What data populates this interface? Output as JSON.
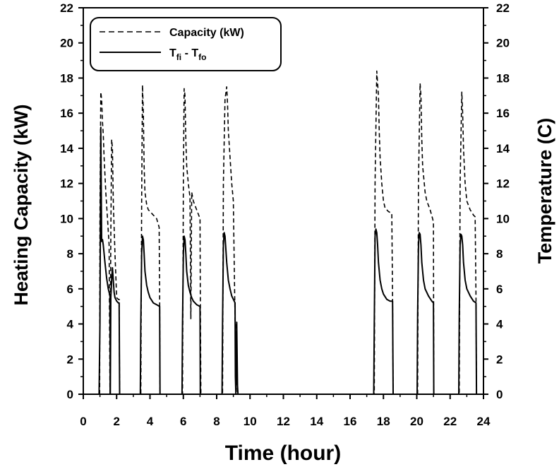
{
  "chart_data": {
    "type": "line",
    "xlabel": "Time (hour)",
    "ylabel_left": "Heating Capacity (kW)",
    "ylabel_right": "Temperature (C)",
    "xlim": [
      0,
      24
    ],
    "ylim": [
      0,
      22
    ],
    "xticks": [
      "0",
      "2",
      "4",
      "6",
      "8",
      "10",
      "12",
      "14",
      "16",
      "18",
      "20",
      "22",
      "24"
    ],
    "yticks": [
      "0",
      "2",
      "4",
      "6",
      "8",
      "10",
      "12",
      "14",
      "16",
      "18",
      "20",
      "22"
    ],
    "legend": {
      "position": "top-left",
      "items": [
        {
          "label": "Capacity (kW)",
          "style": "dashed"
        },
        {
          "label_main": "T",
          "sub1": "fi",
          "mid": " - T",
          "sub2": "fo",
          "style": "solid"
        }
      ]
    },
    "series": [
      {
        "name": "Capacity (kW)",
        "style": "dashed",
        "x": [
          0.98,
          1.0,
          1.05,
          1.1,
          1.15,
          1.2,
          1.25,
          1.35,
          1.45,
          1.55,
          1.6,
          1.65,
          1.7,
          1.75,
          1.8,
          1.85,
          1.9,
          2.0,
          2.1,
          2.15,
          2.18,
          3.45,
          3.5,
          3.55,
          3.6,
          3.65,
          3.7,
          3.8,
          3.9,
          4.0,
          4.2,
          4.4,
          4.55,
          4.58,
          4.6,
          5.95,
          6.0,
          6.05,
          6.1,
          6.15,
          6.2,
          6.3,
          6.4,
          6.45,
          6.5,
          6.6,
          6.8,
          7.0,
          7.02,
          7.05,
          8.35,
          8.4,
          8.5,
          8.6,
          8.65,
          8.7,
          8.8,
          8.9,
          9.0,
          9.1,
          9.15,
          9.18,
          17.45,
          17.5,
          17.6,
          17.7,
          17.75,
          17.8,
          17.9,
          18.0,
          18.1,
          18.3,
          18.5,
          18.55,
          18.58,
          20.05,
          20.1,
          20.2,
          20.25,
          20.3,
          20.35,
          20.5,
          20.6,
          20.8,
          20.95,
          21.0,
          21.02,
          22.55,
          22.6,
          22.7,
          22.75,
          22.8,
          22.9,
          23.0,
          23.2,
          23.4,
          23.5,
          23.55,
          23.58
        ],
        "y": [
          0,
          10.0,
          17.2,
          16.8,
          15.5,
          14.8,
          13.5,
          11.5,
          10.0,
          8.5,
          0,
          9.0,
          14.5,
          14.0,
          11.0,
          9.5,
          8.0,
          5.5,
          5.4,
          5.4,
          0,
          0,
          11.0,
          17.6,
          16.0,
          13.0,
          11.5,
          10.8,
          10.5,
          10.4,
          10.2,
          10.0,
          9.5,
          5.5,
          0,
          0,
          12.0,
          17.4,
          17.0,
          14.5,
          13.0,
          12.0,
          11.2,
          4.3,
          11.5,
          11.0,
          10.5,
          10.0,
          5.8,
          0,
          0,
          12.0,
          16.8,
          17.5,
          16.5,
          15.0,
          13.5,
          12.0,
          11.0,
          4.2,
          4.1,
          0,
          0,
          12.0,
          18.4,
          17.0,
          15.0,
          13.5,
          12.0,
          11.0,
          10.6,
          10.4,
          10.3,
          5.5,
          0,
          0,
          12.0,
          17.7,
          17.0,
          14.5,
          13.0,
          11.5,
          11.0,
          10.5,
          10.0,
          9.8,
          0,
          0,
          12.0,
          17.2,
          16.0,
          14.0,
          12.0,
          11.0,
          10.5,
          10.2,
          10.1,
          5.5,
          0
        ]
      },
      {
        "name": "Tfi - Tfo",
        "style": "solid",
        "x": [
          0.95,
          1.0,
          1.05,
          1.1,
          1.15,
          1.2,
          1.3,
          1.4,
          1.5,
          1.6,
          1.62,
          1.65,
          1.7,
          1.75,
          1.8,
          1.85,
          1.9,
          2.0,
          2.1,
          2.15,
          2.18,
          3.42,
          3.45,
          3.5,
          3.55,
          3.6,
          3.65,
          3.7,
          3.8,
          3.9,
          4.0,
          4.2,
          4.4,
          4.58,
          4.6,
          5.92,
          5.95,
          6.0,
          6.05,
          6.1,
          6.15,
          6.2,
          6.3,
          6.4,
          6.5,
          6.6,
          6.8,
          7.0,
          7.02,
          7.05,
          8.32,
          8.35,
          8.4,
          8.45,
          8.5,
          8.6,
          8.7,
          8.8,
          8.9,
          9.0,
          9.1,
          9.12,
          9.15,
          9.2,
          9.25,
          9.28,
          17.42,
          17.45,
          17.5,
          17.55,
          17.6,
          17.65,
          17.7,
          17.8,
          17.9,
          18.0,
          18.2,
          18.4,
          18.55,
          18.58,
          20.02,
          20.05,
          20.1,
          20.15,
          20.2,
          20.25,
          20.3,
          20.4,
          20.5,
          20.7,
          20.9,
          21.0,
          21.02,
          22.52,
          22.55,
          22.6,
          22.65,
          22.7,
          22.75,
          22.8,
          22.9,
          23.0,
          23.2,
          23.4,
          23.55,
          23.58
        ],
        "y": [
          0,
          4.0,
          15.2,
          8.7,
          8.8,
          8.5,
          7.5,
          6.6,
          6.0,
          5.6,
          0,
          5.5,
          6.5,
          7.2,
          6.5,
          5.8,
          5.5,
          5.3,
          5.2,
          5.2,
          0,
          0,
          4.0,
          8.0,
          9.0,
          8.8,
          8.0,
          7.0,
          6.2,
          5.8,
          5.5,
          5.2,
          5.1,
          5.0,
          0,
          0,
          4.0,
          8.0,
          9.0,
          8.8,
          8.0,
          7.0,
          6.2,
          5.8,
          5.5,
          5.3,
          5.1,
          5.0,
          0,
          0,
          0,
          4.0,
          8.5,
          9.2,
          9.0,
          7.5,
          6.5,
          6.0,
          5.6,
          5.4,
          5.2,
          1.0,
          0,
          4.1,
          0.5,
          0,
          0,
          4.0,
          9.0,
          9.4,
          9.2,
          8.5,
          7.5,
          6.5,
          6.0,
          5.7,
          5.4,
          5.3,
          5.3,
          0,
          0,
          4.5,
          8.5,
          9.2,
          9.1,
          8.5,
          7.5,
          6.5,
          6.0,
          5.6,
          5.3,
          5.2,
          0,
          0,
          4.5,
          8.5,
          9.1,
          9.0,
          8.5,
          7.5,
          6.5,
          6.0,
          5.6,
          5.3,
          5.2,
          0
        ]
      }
    ]
  }
}
